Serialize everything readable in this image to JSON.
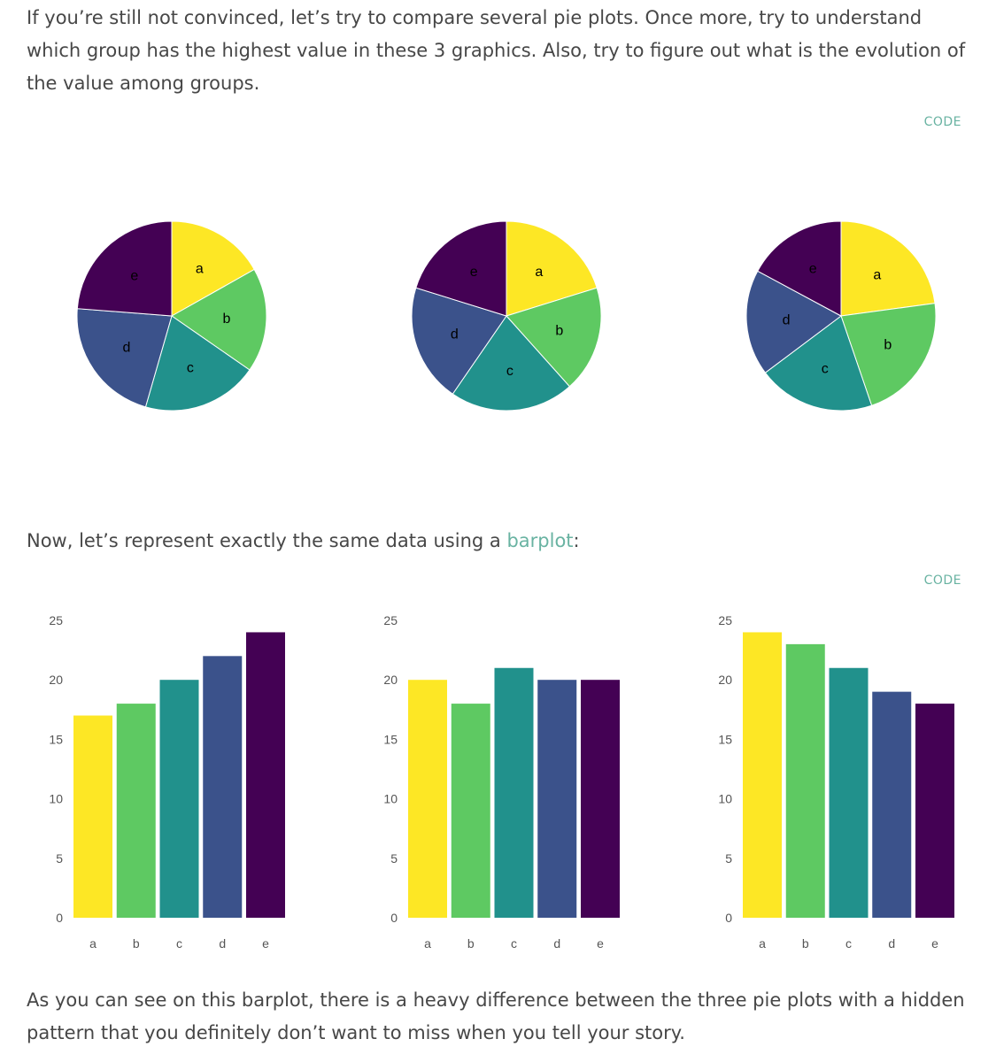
{
  "text": {
    "intro": "If you’re still not convinced, let’s try to compare several pie plots. Once more, try to understand which group has the highest value in these 3 graphics. Also, try to figure out what is the evolution of the value among groups.",
    "code_label_1": "CODE",
    "barplot_before": "Now, let’s represent exactly the same data using a ",
    "barplot_link": "barplot",
    "barplot_after": ":",
    "code_label_2": "CODE",
    "conclusion": "As you can see on this barplot, there is a heavy difference between the three pie plots with a hidden pattern that you definitely don’t want to miss when you tell your story."
  },
  "colors": {
    "a": "#fde725",
    "b": "#5ec962",
    "c": "#21918c",
    "d": "#3b528b",
    "e": "#440154",
    "link": "#69b3a2"
  },
  "chart_data": [
    {
      "type": "pie",
      "categories": [
        "a",
        "b",
        "c",
        "d",
        "e"
      ],
      "values": [
        17,
        18,
        20,
        22,
        24
      ],
      "start": "top, clockwise"
    },
    {
      "type": "pie",
      "categories": [
        "a",
        "b",
        "c",
        "d",
        "e"
      ],
      "values": [
        20,
        18,
        21,
        20,
        20
      ],
      "start": "top, clockwise"
    },
    {
      "type": "pie",
      "categories": [
        "a",
        "b",
        "c",
        "d",
        "e"
      ],
      "values": [
        24,
        23,
        21,
        19,
        18
      ],
      "start": "top, clockwise"
    },
    {
      "type": "bar",
      "categories": [
        "a",
        "b",
        "c",
        "d",
        "e"
      ],
      "values": [
        17,
        18,
        20,
        22,
        24
      ],
      "ylim": [
        0,
        25
      ],
      "yticks": [
        "0",
        "5",
        "10",
        "15",
        "20",
        "25"
      ],
      "grid": false
    },
    {
      "type": "bar",
      "categories": [
        "a",
        "b",
        "c",
        "d",
        "e"
      ],
      "values": [
        20,
        18,
        21,
        20,
        20
      ],
      "ylim": [
        0,
        25
      ],
      "yticks": [
        "0",
        "5",
        "10",
        "15",
        "20",
        "25"
      ],
      "grid": false
    },
    {
      "type": "bar",
      "categories": [
        "a",
        "b",
        "c",
        "d",
        "e"
      ],
      "values": [
        24,
        23,
        21,
        19,
        18
      ],
      "ylim": [
        0,
        25
      ],
      "yticks": [
        "0",
        "5",
        "10",
        "15",
        "20",
        "25"
      ],
      "grid": false
    }
  ]
}
